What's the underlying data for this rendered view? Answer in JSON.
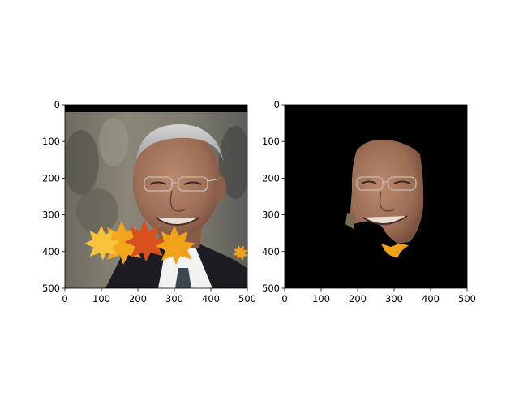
{
  "figure": {
    "background": "#ffffff",
    "panel_count": 2
  },
  "chart_data": [
    {
      "type": "image",
      "title": "",
      "xlabel": "",
      "ylabel": "",
      "xlim": [
        0,
        500
      ],
      "ylim": [
        500,
        0
      ],
      "y_inverted": true,
      "grid": false,
      "xticks": [
        0,
        100,
        200,
        300,
        400,
        500
      ],
      "yticks": [
        0,
        100,
        200,
        300,
        400,
        500
      ],
      "image_description_colors": {
        "top_band": "#000000",
        "suit": "#1c1c22",
        "shirt": "#f2f2f2",
        "leaves": "#f0a21a",
        "face": "#a97a62"
      },
      "overlay_icons": [
        "maple-leaf-icon",
        "maple-leaf-icon",
        "maple-leaf-icon"
      ]
    },
    {
      "type": "image",
      "title": "",
      "xlabel": "",
      "ylabel": "",
      "xlim": [
        0,
        500
      ],
      "ylim": [
        500,
        0
      ],
      "y_inverted": true,
      "grid": false,
      "xticks": [
        0,
        100,
        200,
        300,
        400,
        500
      ],
      "yticks": [
        0,
        100,
        200,
        300,
        400,
        500
      ],
      "image_description_colors": {
        "background": "#000000",
        "face": "#a97a62",
        "leaf_fragment": "#f0a21a"
      }
    }
  ]
}
